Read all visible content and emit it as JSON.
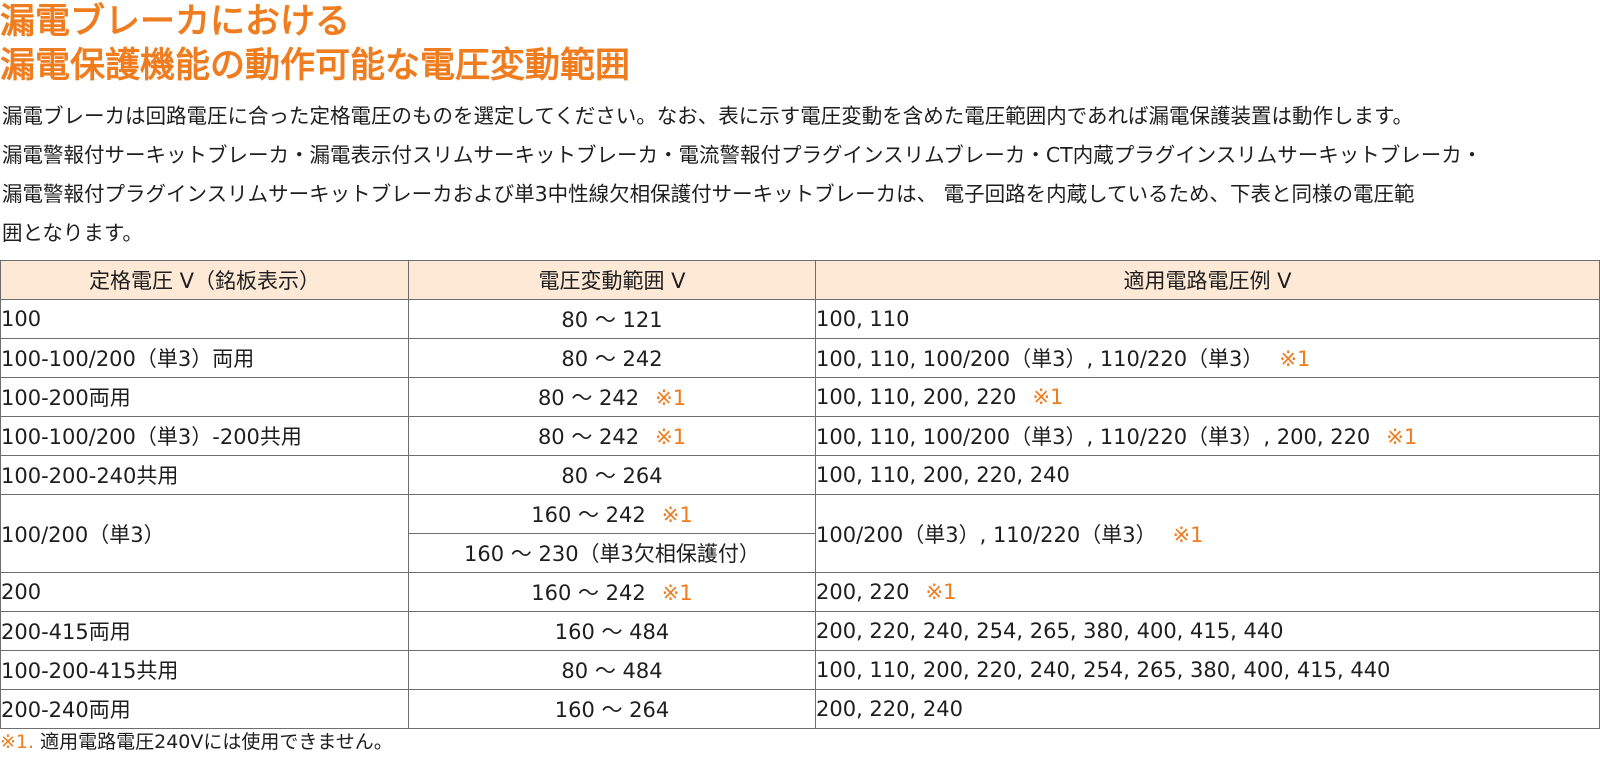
{
  "title": {
    "line1": "漏電ブレーカにおける",
    "line2": "漏電保護機能の動作可能な電圧変動範囲"
  },
  "intro": {
    "line1": "漏電ブレーカは回路電圧に合った定格電圧のものを選定してください。なお、表に示す電圧変動を含めた電圧範囲内であれば漏電保護装置は動作します。",
    "line2": "漏電警報付サーキットブレーカ・漏電表示付スリムサーキットブレーカ・電流警報付プラグインスリムブレーカ・CT内蔵プラグインスリムサーキットブレーカ・",
    "line3": "漏電警報付プラグインスリムサーキットブレーカおよび単3中性線欠相保護付サーキットブレーカは、 電子回路を内蔵しているため、下表と同様の電圧範",
    "line4": "囲となります。"
  },
  "table": {
    "headers": [
      "定格電圧 V（銘板表示）",
      "電圧変動範囲 V",
      "適用電路電圧例 V"
    ],
    "rows": [
      {
        "rated": "100",
        "range": "80 ～ 121",
        "range_mark": "",
        "examples": "100, 110",
        "examples_mark": ""
      },
      {
        "rated": "100-100/200（単3）両用",
        "range": "80 ～ 242",
        "range_mark": "",
        "examples": "100, 110, 100/200（単3）, 110/220（単3）",
        "examples_mark": "※1"
      },
      {
        "rated": "100-200両用",
        "range": "80 ～ 242",
        "range_mark": "※1",
        "examples": "100, 110, 200, 220",
        "examples_mark": "※1"
      },
      {
        "rated": "100-100/200（単3）-200共用",
        "range": "80 ～ 242",
        "range_mark": "※1",
        "examples": "100, 110, 100/200（単3）, 110/220（単3）, 200, 220",
        "examples_mark": "※1"
      },
      {
        "rated": "100-200-240共用",
        "range": "80 ～ 264",
        "range_mark": "",
        "examples": "100, 110, 200, 220, 240",
        "examples_mark": ""
      },
      {
        "rated": "100/200（単3）",
        "range": "160 ～ 242",
        "range_mark": "※1",
        "range2": "160 ～ 230（単3欠相保護付）",
        "examples": "100/200（単3）, 110/220（単3）",
        "examples_mark": "※1"
      },
      {
        "rated": "200",
        "range": "160 ～ 242",
        "range_mark": "※1",
        "examples": "200, 220",
        "examples_mark": "※1"
      },
      {
        "rated": "200-415両用",
        "range": "160 ～ 484",
        "range_mark": "",
        "examples": "200, 220, 240, 254, 265, 380, 400, 415, 440",
        "examples_mark": ""
      },
      {
        "rated": "100-200-415共用",
        "range": "80 ～ 484",
        "range_mark": "",
        "examples": "100, 110,  200, 220, 240, 254, 265, 380, 400, 415, 440",
        "examples_mark": ""
      },
      {
        "rated": "200-240両用",
        "range": "160 ～ 264",
        "range_mark": "",
        "examples": "200, 220, 240",
        "examples_mark": ""
      }
    ]
  },
  "footnote": {
    "mark": "※1.",
    "text": "適用電路電圧240Vには使用できません。"
  },
  "colors": {
    "accent": "#ef7d1f",
    "header_bg": "#fde9d6",
    "border": "#6e6e6e"
  }
}
